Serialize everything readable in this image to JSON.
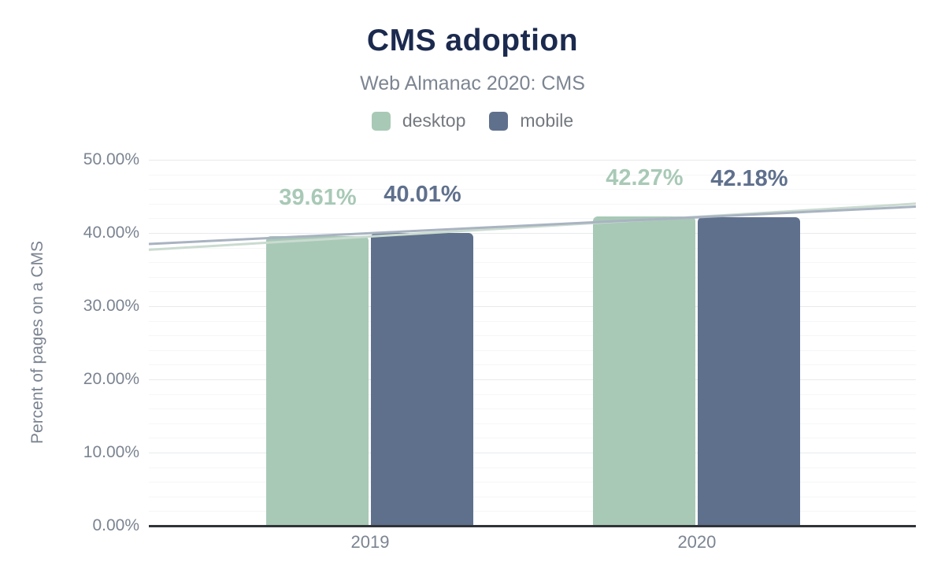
{
  "chart_data": {
    "type": "bar",
    "title": "CMS adoption",
    "subtitle": "Web Almanac 2020: CMS",
    "ylabel": "Percent of pages on a CMS",
    "xlabel": "",
    "categories": [
      "2019",
      "2020"
    ],
    "series": [
      {
        "name": "desktop",
        "values": [
          39.61,
          42.27
        ],
        "labels": [
          "39.61%",
          "42.27%"
        ],
        "color": "#a8c9b6"
      },
      {
        "name": "mobile",
        "values": [
          40.01,
          42.18
        ],
        "labels": [
          "40.01%",
          "42.18%"
        ],
        "color": "#5f708d"
      }
    ],
    "trendlines": [
      {
        "series": "desktop",
        "left_value": 37.7,
        "right_value": 44.0,
        "color": "#cadbd0"
      },
      {
        "series": "mobile",
        "left_value": 38.5,
        "right_value": 43.6,
        "color": "#a9b3c1"
      }
    ],
    "ylim": [
      0,
      50
    ],
    "yticks": [
      {
        "value": 0,
        "label": "0.00%"
      },
      {
        "value": 10,
        "label": "10.00%"
      },
      {
        "value": 20,
        "label": "20.00%"
      },
      {
        "value": 30,
        "label": "30.00%"
      },
      {
        "value": 40,
        "label": "40.00%"
      },
      {
        "value": 50,
        "label": "50.00%"
      }
    ],
    "minor_grid_step": 2,
    "major_grid_step": 10,
    "grid": true,
    "legend_position": "top"
  },
  "colors": {
    "title": "#1b2a4e",
    "subtitle": "#7c8591",
    "legend_text": "#74797f",
    "axis_text": "#7b8491",
    "axis_line": "#303338",
    "major_grid": "#e8eaed",
    "minor_grid": "#f5f6f7",
    "background": "#ffffff"
  }
}
